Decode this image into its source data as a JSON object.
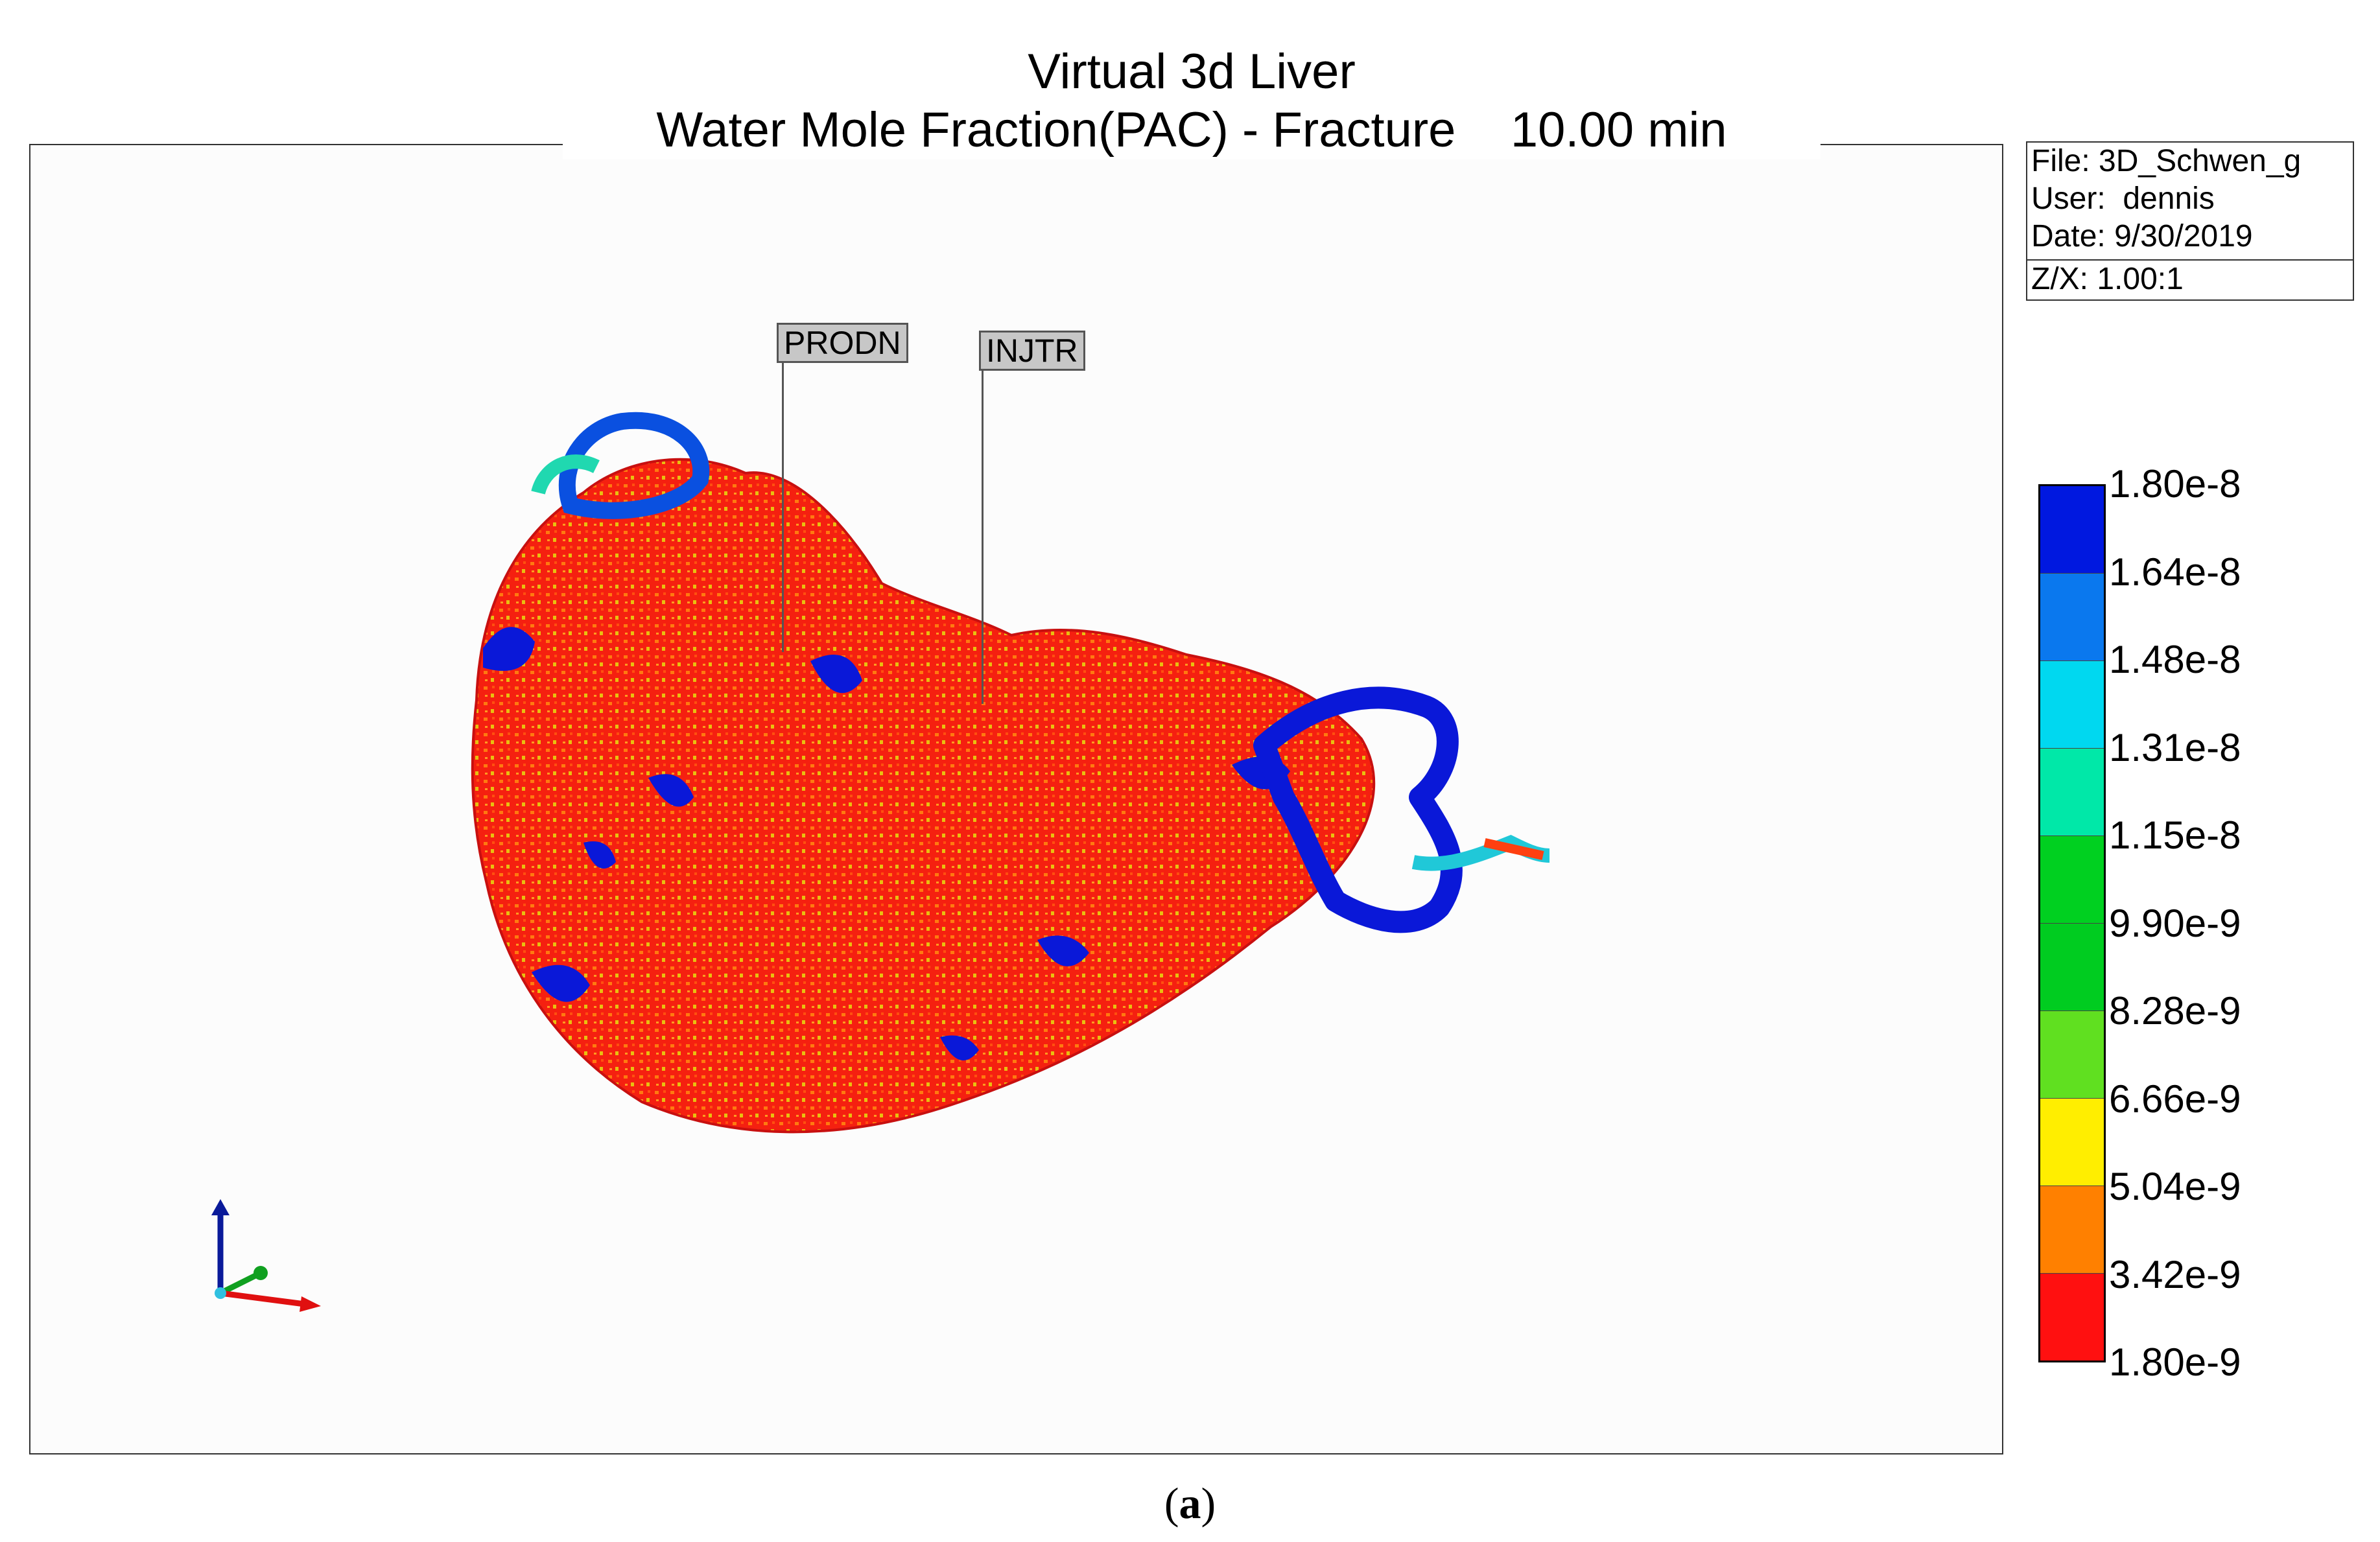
{
  "title": {
    "line1": "Virtual 3d Liver",
    "line2": "Water Mole Fraction(PAC) - Fracture    10.00 min"
  },
  "info": {
    "file": "File: 3D_Schwen_g",
    "user": "User:  dennis",
    "date": "Date: 9/30/2019",
    "zx": "Z/X: 1.00:1"
  },
  "wells": {
    "prod": "PRODN",
    "inj": "INJTR"
  },
  "legend": {
    "labels": [
      "1.80e-8",
      "1.64e-8",
      "1.48e-8",
      "1.31e-8",
      "1.15e-8",
      "9.90e-9",
      "8.28e-9",
      "6.66e-9",
      "5.04e-9",
      "3.42e-9",
      "1.80e-9"
    ],
    "colors": [
      "#0018e0",
      "#0a78ee",
      "#00d8f0",
      "#00e8a8",
      "#00d020",
      "#00cc20",
      "#60e020",
      "#ffee00",
      "#ff8000",
      "#ff1010"
    ]
  },
  "axes_colors": {
    "z": "#0a1a9a",
    "y": "#10a020",
    "x": "#e01010"
  },
  "caption_letter": "a"
}
